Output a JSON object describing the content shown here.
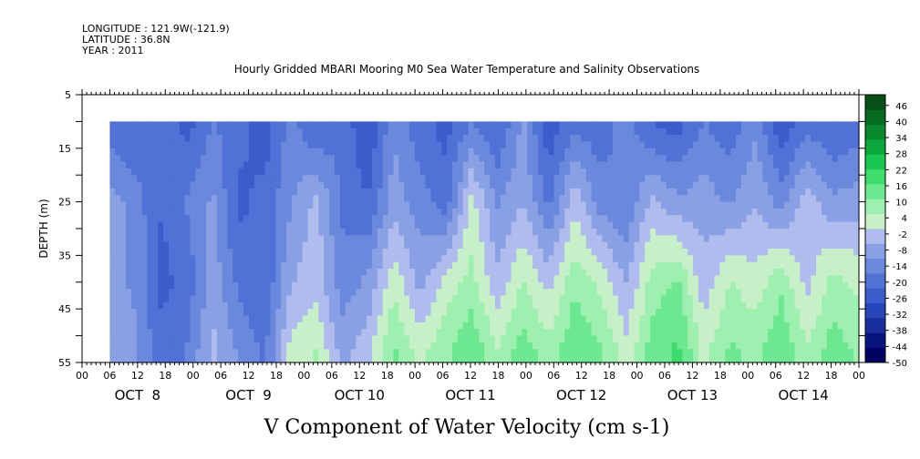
{
  "header": {
    "longitude": "LONGITUDE : 121.9W(-121.9)",
    "latitude": "LATITUDE : 36.8N",
    "year": "YEAR : 2011"
  },
  "chart_data": {
    "type": "heatmap",
    "title": "Hourly Gridded MBARI Mooring M0 Sea Water Temperature and Salinity Observations",
    "xlabel": "V Component of Water Velocity (cm s-1)",
    "ylabel": "DEPTH (m)",
    "x_range_hours": [
      0,
      168
    ],
    "data_start_hour": 6,
    "y_range_m": [
      5,
      55
    ],
    "data_top_depth_m": 10,
    "y_ticks": [
      "5",
      "15",
      "25",
      "35",
      "45",
      "55"
    ],
    "x_hour_tick_labels": [
      "00",
      "06",
      "12",
      "18",
      "00",
      "06",
      "12",
      "18",
      "00",
      "06",
      "12",
      "18",
      "00",
      "06",
      "12",
      "18",
      "00",
      "06",
      "12",
      "18",
      "00",
      "06",
      "12",
      "18",
      "00",
      "06",
      "12",
      "18",
      "00"
    ],
    "day_labels": [
      "OCT  8",
      "OCT  9",
      "OCT 10",
      "OCT 11",
      "OCT 12",
      "OCT 13",
      "OCT 14"
    ],
    "colorbar": {
      "min": -50,
      "max": 50,
      "step": 2,
      "tick_labels": [
        "46",
        "40",
        "34",
        "28",
        "22",
        "16",
        "10",
        "4",
        "-2",
        "-8",
        "-14",
        "-20",
        "-26",
        "-32",
        "-38",
        "-44",
        "-50"
      ],
      "colors": [
        "#000060",
        "#0a1480",
        "#1a2e9e",
        "#2846b8",
        "#3c5ccc",
        "#5072d6",
        "#6a88dc",
        "#8aa0e4",
        "#b0bcee",
        "#c8f0c8",
        "#9ef0b0",
        "#6ee890",
        "#3edc6c",
        "#18c84e",
        "#0aa83a",
        "#08882c",
        "#066a22",
        "#055018"
      ]
    },
    "time_rows": [
      {
        "depth_m": 11,
        "v": [
          -20,
          -22,
          -18,
          -24,
          -16,
          -20,
          -26,
          -14,
          -22,
          -18,
          -28,
          -12,
          -20,
          -24,
          -16,
          -22,
          -10,
          -26,
          -18,
          -20,
          -14,
          -22,
          -24,
          -16,
          -20,
          -12,
          -26,
          -18,
          -22,
          -20
        ]
      },
      {
        "depth_m": 25,
        "v": [
          -8,
          -14,
          -22,
          -16,
          -10,
          -24,
          -20,
          -12,
          -4,
          -18,
          -22,
          -8,
          -14,
          -20,
          2,
          -12,
          -6,
          -18,
          -2,
          -14,
          -16,
          -4,
          -10,
          -8,
          -12,
          -6,
          -14,
          -2,
          -10,
          -8
        ]
      },
      {
        "depth_m": 40,
        "v": [
          -10,
          -12,
          -24,
          -20,
          -8,
          -18,
          -22,
          -6,
          -2,
          -14,
          -10,
          4,
          -8,
          2,
          8,
          -4,
          6,
          -2,
          10,
          4,
          -6,
          8,
          12,
          -4,
          6,
          2,
          10,
          -2,
          8,
          4
        ]
      },
      {
        "depth_m": 53,
        "v": [
          -6,
          -10,
          -20,
          -16,
          -4,
          -12,
          -18,
          2,
          6,
          -8,
          -2,
          12,
          4,
          10,
          16,
          6,
          14,
          8,
          16,
          12,
          2,
          14,
          18,
          4,
          12,
          10,
          16,
          6,
          14,
          10
        ]
      }
    ]
  }
}
